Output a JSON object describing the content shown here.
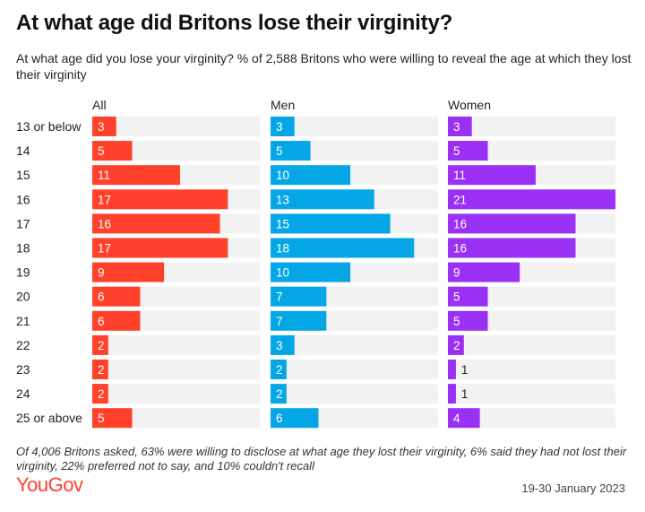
{
  "header": {
    "title": "At what age did Britons lose their virginity?",
    "subtitle": "At what age did you lose your virginity? % of 2,588 Britons who were willing to reveal the age at which they lost their virginity"
  },
  "chart_data": {
    "type": "bar",
    "orientation": "horizontal",
    "categories": [
      "13 or below",
      "14",
      "15",
      "16",
      "17",
      "18",
      "19",
      "20",
      "21",
      "22",
      "23",
      "24",
      "25 or above"
    ],
    "series": [
      {
        "name": "All",
        "color": "#ff412c",
        "values": [
          3,
          5,
          11,
          17,
          16,
          17,
          9,
          6,
          6,
          2,
          2,
          2,
          5
        ]
      },
      {
        "name": "Men",
        "color": "#05a6e6",
        "values": [
          3,
          5,
          10,
          13,
          15,
          18,
          10,
          7,
          7,
          3,
          2,
          2,
          6
        ]
      },
      {
        "name": "Women",
        "color": "#9b30f5",
        "values": [
          3,
          5,
          11,
          21,
          16,
          16,
          9,
          5,
          5,
          2,
          1,
          1,
          4
        ]
      }
    ],
    "xlim": [
      0,
      21
    ],
    "unit": "%",
    "background_bar_color": "#f2f2f2"
  },
  "footer": {
    "note": "Of 4,006 Britons asked, 63% were willing to disclose at what age they lost their virginity, 6% said they had not lost their virginity, 22% preferred not to say, and 10% couldn't recall",
    "brand": "YouGov",
    "date": "19-30 January 2023"
  }
}
